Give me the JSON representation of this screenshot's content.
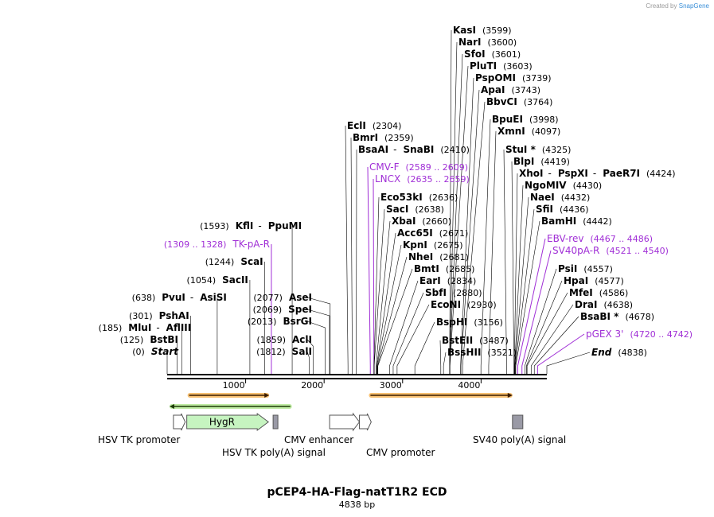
{
  "credit": {
    "prefix": "Created by",
    "brand": "SnapGene"
  },
  "plasmid": {
    "name": "pCEP4-HA-Flag-natT1R2 ECD",
    "size": "4838 bp",
    "length_bp": 4838
  },
  "colors": {
    "primer": "#a02fd6",
    "feature_green": "#c6f4c0",
    "orf_orange": "#f5b150",
    "backbone": "#000000"
  },
  "scale_ticks": [
    {
      "label": "1000",
      "bp": 1000
    },
    {
      "label": "2000",
      "bp": 2000
    },
    {
      "label": "3000",
      "bp": 3000
    },
    {
      "label": "4000",
      "bp": 4000
    }
  ],
  "left_labels": [
    {
      "kind": "enzyme",
      "text": "Start",
      "pos": "(0)",
      "bp": 0,
      "italic": true
    },
    {
      "kind": "enzyme",
      "text": "BstBI",
      "pos": "(125)",
      "bp": 125
    },
    {
      "kind": "enzyme",
      "text": "MluI",
      "extra": "AflIII",
      "pos": "(185)",
      "bp": 185
    },
    {
      "kind": "enzyme",
      "text": "PshAI",
      "pos": "(301)",
      "bp": 301
    },
    {
      "kind": "enzyme",
      "text": "PvuI",
      "extra": "AsiSI",
      "pos": "(638)",
      "bp": 638
    },
    {
      "kind": "enzyme",
      "text": "SacII",
      "pos": "(1054)",
      "bp": 1054
    },
    {
      "kind": "enzyme",
      "text": "ScaI",
      "pos": "(1244)",
      "bp": 1244
    },
    {
      "kind": "primer",
      "text": "TK-pA-R",
      "pos": "(1309 .. 1328)",
      "bp": 1328
    },
    {
      "kind": "enzyme",
      "text": "KflI",
      "extra": "PpuMI",
      "pos": "(1593)",
      "bp": 1593
    }
  ],
  "mid_labels": [
    {
      "kind": "enzyme",
      "text": "SalI",
      "pos": "(1812)",
      "bp": 1812
    },
    {
      "kind": "enzyme",
      "text": "AclI",
      "pos": "(1859)",
      "bp": 1859
    },
    {
      "kind": "enzyme",
      "text": "BsrGI",
      "pos": "(2013)",
      "bp": 2013
    },
    {
      "kind": "enzyme",
      "text": "SpeI",
      "pos": "(2069)",
      "bp": 2069
    },
    {
      "kind": "enzyme",
      "text": "AseI",
      "pos": "(2077)",
      "bp": 2077
    }
  ],
  "right_labels": [
    {
      "kind": "enzyme",
      "text": "KasI",
      "pos": "(3599)",
      "bp": 3599
    },
    {
      "kind": "enzyme",
      "text": "NarI",
      "pos": "(3600)",
      "bp": 3600
    },
    {
      "kind": "enzyme",
      "text": "SfoI",
      "pos": "(3601)",
      "bp": 3601
    },
    {
      "kind": "enzyme",
      "text": "PluTI",
      "pos": "(3603)",
      "bp": 3603
    },
    {
      "kind": "enzyme",
      "text": "PspOMI",
      "pos": "(3739)",
      "bp": 3739
    },
    {
      "kind": "enzyme",
      "text": "ApaI",
      "pos": "(3743)",
      "bp": 3743
    },
    {
      "kind": "enzyme",
      "text": "BbvCI",
      "pos": "(3764)",
      "bp": 3764
    },
    {
      "kind": "enzyme",
      "text": "EclI",
      "pos": "(2304)",
      "bp": 2304
    },
    {
      "kind": "enzyme",
      "text": "BpuEI",
      "pos": "(3998)",
      "bp": 3998
    },
    {
      "kind": "enzyme",
      "text": "BmrI",
      "pos": "(2359)",
      "bp": 2359
    },
    {
      "kind": "enzyme",
      "text": "XmnI",
      "pos": "(4097)",
      "bp": 4097
    },
    {
      "kind": "enzyme",
      "text": "BsaAI",
      "extra": "SnaBI",
      "pos": "(2410)",
      "bp": 2410
    },
    {
      "kind": "enzyme",
      "text": "StuI *",
      "pos": "(4325)",
      "bp": 4325
    },
    {
      "kind": "enzyme",
      "text": "BlpI",
      "pos": "(4419)",
      "bp": 4419
    },
    {
      "kind": "primer",
      "text": "CMV-F",
      "pos": "(2589 .. 2609)",
      "bp": 2589
    },
    {
      "kind": "enzyme",
      "text": "XhoI",
      "extra": "PspXI",
      "extra2": "PaeR7I",
      "pos": "(4424)",
      "bp": 4424
    },
    {
      "kind": "primer",
      "text": "LNCX",
      "pos": "(2635 .. 2659)",
      "bp": 2635
    },
    {
      "kind": "enzyme",
      "text": "NgoMIV",
      "pos": "(4430)",
      "bp": 4430
    },
    {
      "kind": "enzyme",
      "text": "Eco53kI",
      "pos": "(2636)",
      "bp": 2636
    },
    {
      "kind": "enzyme",
      "text": "NaeI",
      "pos": "(4432)",
      "bp": 4432
    },
    {
      "kind": "enzyme",
      "text": "SacI",
      "pos": "(2638)",
      "bp": 2638
    },
    {
      "kind": "enzyme",
      "text": "SfiI",
      "pos": "(4436)",
      "bp": 4436
    },
    {
      "kind": "enzyme",
      "text": "XbaI",
      "pos": "(2660)",
      "bp": 2660
    },
    {
      "kind": "enzyme",
      "text": "BamHI",
      "pos": "(4442)",
      "bp": 4442
    },
    {
      "kind": "enzyme",
      "text": "Acc65I",
      "pos": "(2671)",
      "bp": 2671
    },
    {
      "kind": "primer",
      "text": "EBV-rev",
      "pos": "(4467 .. 4486)",
      "bp": 4467
    },
    {
      "kind": "enzyme",
      "text": "KpnI",
      "pos": "(2675)",
      "bp": 2675
    },
    {
      "kind": "primer",
      "text": "SV40pA-R",
      "pos": "(4521 .. 4540)",
      "bp": 4521
    },
    {
      "kind": "enzyme",
      "text": "NheI",
      "pos": "(2681)",
      "bp": 2681
    },
    {
      "kind": "enzyme",
      "text": "BmtI",
      "pos": "(2685)",
      "bp": 2685
    },
    {
      "kind": "enzyme",
      "text": "PsiI",
      "pos": "(4557)",
      "bp": 4557
    },
    {
      "kind": "enzyme",
      "text": "EarI",
      "pos": "(2834)",
      "bp": 2834
    },
    {
      "kind": "enzyme",
      "text": "HpaI",
      "pos": "(4577)",
      "bp": 4577
    },
    {
      "kind": "enzyme",
      "text": "SbfI",
      "pos": "(2880)",
      "bp": 2880
    },
    {
      "kind": "enzyme",
      "text": "MfeI",
      "pos": "(4586)",
      "bp": 4586
    },
    {
      "kind": "enzyme",
      "text": "EcoNI",
      "pos": "(2930)",
      "bp": 2930
    },
    {
      "kind": "enzyme",
      "text": "DraI",
      "pos": "(4638)",
      "bp": 4638
    },
    {
      "kind": "enzyme",
      "text": "BsaBI *",
      "pos": "(4678)",
      "bp": 4678
    },
    {
      "kind": "enzyme",
      "text": "BspHI",
      "pos": "(3156)",
      "bp": 3156
    },
    {
      "kind": "primer",
      "text": "pGEX 3'",
      "pos": "(4720 .. 4742)",
      "bp": 4720
    },
    {
      "kind": "enzyme",
      "text": "BstEII",
      "pos": "(3487)",
      "bp": 3487
    },
    {
      "kind": "enzyme",
      "text": "BssHII",
      "pos": "(3521)",
      "bp": 3521
    },
    {
      "kind": "enzyme",
      "text": "End",
      "pos": "(4838)",
      "bp": 4838,
      "italic": true
    }
  ],
  "features": [
    {
      "name": "HSV TK promoter",
      "type": "promoter",
      "start_bp": 80,
      "end_bp": 230
    },
    {
      "name": "HygR",
      "type": "gene",
      "start_bp": 250,
      "end_bp": 1290
    },
    {
      "name": "HSV TK poly(A) signal",
      "type": "terminator",
      "start_bp": 1350,
      "end_bp": 1410
    },
    {
      "name": "CMV enhancer",
      "type": "promoter",
      "start_bp": 2070,
      "end_bp": 2450
    },
    {
      "name": "CMV promoter",
      "type": "promoter",
      "start_bp": 2450,
      "end_bp": 2600
    },
    {
      "name": "SV40 poly(A) signal",
      "type": "terminator",
      "start_bp": 4400,
      "end_bp": 4530
    }
  ],
  "orfs": [
    {
      "direction": "forward",
      "start_bp": 260,
      "end_bp": 1300
    },
    {
      "direction": "reverse",
      "start_bp": 30,
      "end_bp": 1590
    },
    {
      "direction": "forward",
      "start_bp": 2570,
      "end_bp": 4400
    }
  ]
}
